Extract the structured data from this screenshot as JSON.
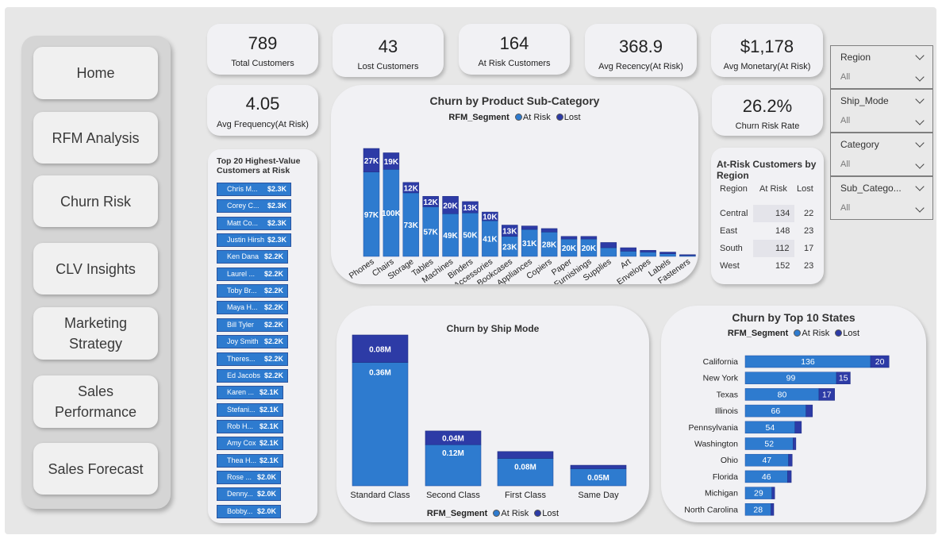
{
  "nav": {
    "items": [
      "Home",
      "RFM Analysis",
      "Churn Risk",
      "CLV Insights",
      "Marketing Strategy",
      "Sales Performance",
      "Sales Forecast"
    ]
  },
  "kpis": {
    "total_customers": {
      "value": "789",
      "label": "Total Customers"
    },
    "lost_customers": {
      "value": "43",
      "label": "Lost Customers"
    },
    "at_risk_customers": {
      "value": "164",
      "label": "At Risk Customers"
    },
    "avg_recency": {
      "value": "368.9",
      "label": "Avg Recency(At Risk)"
    },
    "avg_monetary": {
      "value": "$1,178",
      "label": "Avg Monetary(At Risk)"
    },
    "avg_frequency": {
      "value": "4.05",
      "label": "Avg Frequency(At Risk)"
    },
    "churn_rate": {
      "value": "26.2%",
      "label": "Churn Risk Rate"
    }
  },
  "slicers": [
    {
      "title": "Region",
      "value": "All"
    },
    {
      "title": "Ship_Mode",
      "value": "All"
    },
    {
      "title": "Category",
      "value": "All"
    },
    {
      "title": "Sub_Catego...",
      "value": "All"
    }
  ],
  "top20": {
    "title": "Top 20 Highest-Value Customers at Risk",
    "items": [
      {
        "name": "Chris M...",
        "value": "$2.3K"
      },
      {
        "name": "Corey C...",
        "value": "$2.3K"
      },
      {
        "name": "Matt Co...",
        "value": "$2.3K"
      },
      {
        "name": "Justin Hirsh",
        "value": "$2.3K"
      },
      {
        "name": "Ken Dana",
        "value": "$2.2K"
      },
      {
        "name": "Laurel ...",
        "value": "$2.2K"
      },
      {
        "name": "Toby Br...",
        "value": "$2.2K"
      },
      {
        "name": "Maya H...",
        "value": "$2.2K"
      },
      {
        "name": "Bill Tyler",
        "value": "$2.2K"
      },
      {
        "name": "Joy Smith",
        "value": "$2.2K"
      },
      {
        "name": "Theres...",
        "value": "$2.2K"
      },
      {
        "name": "Ed Jacobs",
        "value": "$2.2K"
      },
      {
        "name": "Karen ...",
        "value": "$2.1K"
      },
      {
        "name": "Stefani...",
        "value": "$2.1K"
      },
      {
        "name": "Rob H...",
        "value": "$2.1K"
      },
      {
        "name": "Amy Cox",
        "value": "$2.1K"
      },
      {
        "name": "Thea H...",
        "value": "$2.1K"
      },
      {
        "name": "Rose ...",
        "value": "$2.0K"
      },
      {
        "name": "Denny...",
        "value": "$2.0K"
      },
      {
        "name": "Bobby...",
        "value": "$2.0K"
      }
    ]
  },
  "region_table": {
    "title": "At-Risk Customers by Region",
    "headers": [
      "Region",
      "At Risk",
      "Lost"
    ],
    "rows": [
      [
        "Central",
        "134",
        "22"
      ],
      [
        "East",
        "148",
        "23"
      ],
      [
        "South",
        "112",
        "17"
      ],
      [
        "West",
        "152",
        "23"
      ]
    ]
  },
  "legend": {
    "field": "RFM_Segment",
    "at_risk": "At Risk",
    "lost": "Lost"
  },
  "colors": {
    "at_risk": "#2e7bcf",
    "lost": "#2d3ba6",
    "card": "#f1f1f4"
  },
  "chart_data": [
    {
      "type": "bar",
      "stacked": true,
      "title": "Churn by Product Sub-Category",
      "categories": [
        "Phones",
        "Chairs",
        "Storage",
        "Tables",
        "Machines",
        "Binders",
        "Accessories",
        "Bookcases",
        "Appliances",
        "Copiers",
        "Paper",
        "Furnishings",
        "Supplies",
        "Art",
        "Envelopes",
        "Labels",
        "Fasteners"
      ],
      "series": [
        {
          "name": "At Risk",
          "values": [
            97,
            100,
            73,
            57,
            49,
            50,
            41,
            23,
            31,
            28,
            20,
            20,
            10,
            6,
            5,
            3,
            1
          ],
          "labels": [
            "97K",
            "100K",
            "73K",
            "57K",
            "49K",
            "50K",
            "41K",
            "23K",
            "31K",
            "28K",
            "20K",
            "20K",
            "",
            "",
            "",
            "",
            ""
          ]
        },
        {
          "name": "Lost",
          "values": [
            27,
            19,
            12,
            12,
            20,
            13,
            10,
            13,
            4,
            4,
            3,
            3,
            6,
            4,
            2,
            2,
            1
          ],
          "labels": [
            "27K",
            "19K",
            "12K",
            "12K",
            "20K",
            "13K",
            "10K",
            "13K",
            "",
            "",
            "",
            "",
            "",
            "",
            "",
            "",
            ""
          ]
        }
      ]
    },
    {
      "type": "bar",
      "stacked": true,
      "title": "Churn by Ship Mode",
      "categories": [
        "Standard Class",
        "Second Class",
        "First Class",
        "Same Day"
      ],
      "series": [
        {
          "name": "At Risk",
          "values": [
            0.36,
            0.12,
            0.08,
            0.05
          ],
          "labels": [
            "0.36M",
            "0.12M",
            "0.08M",
            "0.05M"
          ]
        },
        {
          "name": "Lost",
          "values": [
            0.08,
            0.04,
            0.02,
            0.01
          ],
          "labels": [
            "0.08M",
            "0.04M",
            "",
            ""
          ]
        }
      ]
    },
    {
      "type": "bar",
      "orientation": "horizontal",
      "stacked": true,
      "title": "Churn by Top 10 States",
      "categories": [
        "California",
        "New York",
        "Texas",
        "Illinois",
        "Pennsylvania",
        "Washington",
        "Ohio",
        "Florida",
        "Michigan",
        "North Carolina"
      ],
      "series": [
        {
          "name": "At Risk",
          "values": [
            136,
            99,
            80,
            66,
            54,
            52,
            47,
            46,
            29,
            28
          ]
        },
        {
          "name": "Lost",
          "values": [
            20,
            15,
            17,
            7,
            7,
            3,
            4,
            4,
            3,
            3
          ],
          "labels": [
            "20",
            "15",
            "17",
            "",
            "",
            "",
            "",
            "",
            "",
            ""
          ]
        }
      ]
    }
  ]
}
